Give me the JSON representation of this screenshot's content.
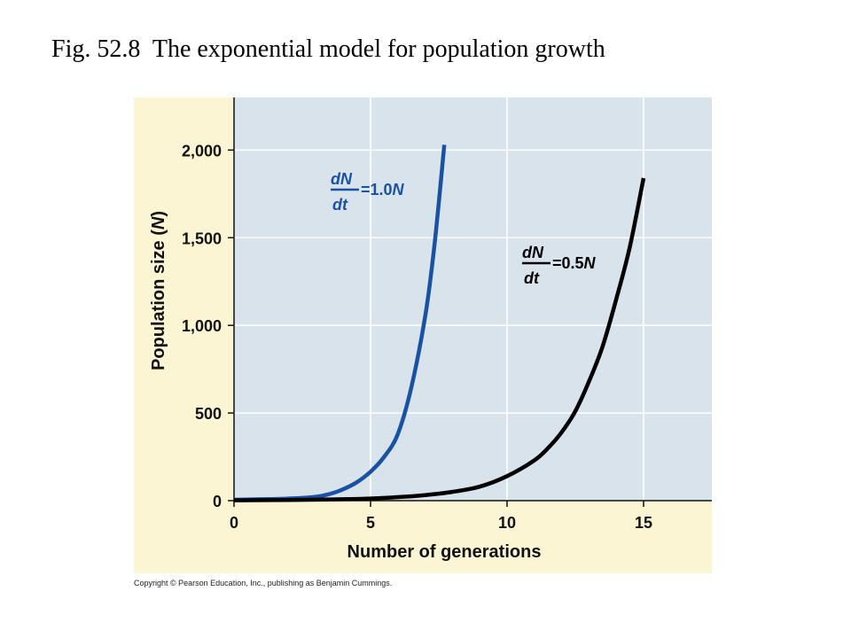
{
  "page_title": "Fig. 52.8  The exponential model for population growth",
  "copyright": "Copyright © Pearson Education, Inc., publishing as Benjamin Cummings.",
  "colors": {
    "panel_bg": "#fbf5d4",
    "plot_bg": "#d8e3ec",
    "grid": "#ffffff",
    "series_fast": "#1a52a3",
    "series_slow": "#000000"
  },
  "chart_data": {
    "type": "line",
    "xlabel": "Number of generations",
    "ylabel": "Population size (N)",
    "xlim": [
      0,
      17.5
    ],
    "ylim": [
      0,
      2300
    ],
    "xticks": [
      0,
      5,
      10,
      15
    ],
    "xtick_labels": [
      "0",
      "5",
      "10",
      "15"
    ],
    "yticks": [
      0,
      500,
      1000,
      1500,
      2000
    ],
    "ytick_labels": [
      "0",
      "500",
      "1,000",
      "1,500",
      "2,000"
    ],
    "grid": true,
    "series": [
      {
        "equation_num": "dN",
        "equation_den": "dt",
        "equation_rhs": "=1.0N",
        "color": "#1a52a3",
        "x": [
          0,
          1,
          2,
          3,
          3.5,
          4,
          4.5,
          5,
          5.5,
          6,
          6.5,
          7,
          7.3,
          7.5,
          7.7
        ],
        "y": [
          5,
          8,
          12,
          22,
          38,
          65,
          105,
          165,
          250,
          380,
          650,
          1050,
          1400,
          1700,
          2030
        ]
      },
      {
        "equation_num": "dN",
        "equation_den": "dt",
        "equation_rhs": "=0.5N",
        "color": "#000000",
        "x": [
          0,
          2,
          4,
          5,
          6,
          7,
          8,
          9,
          10,
          11,
          11.5,
          12,
          12.5,
          13,
          13.5,
          14,
          14.5,
          15
        ],
        "y": [
          2,
          4,
          8,
          12,
          20,
          32,
          50,
          80,
          140,
          230,
          300,
          390,
          510,
          680,
          880,
          1150,
          1450,
          1840
        ]
      }
    ]
  }
}
